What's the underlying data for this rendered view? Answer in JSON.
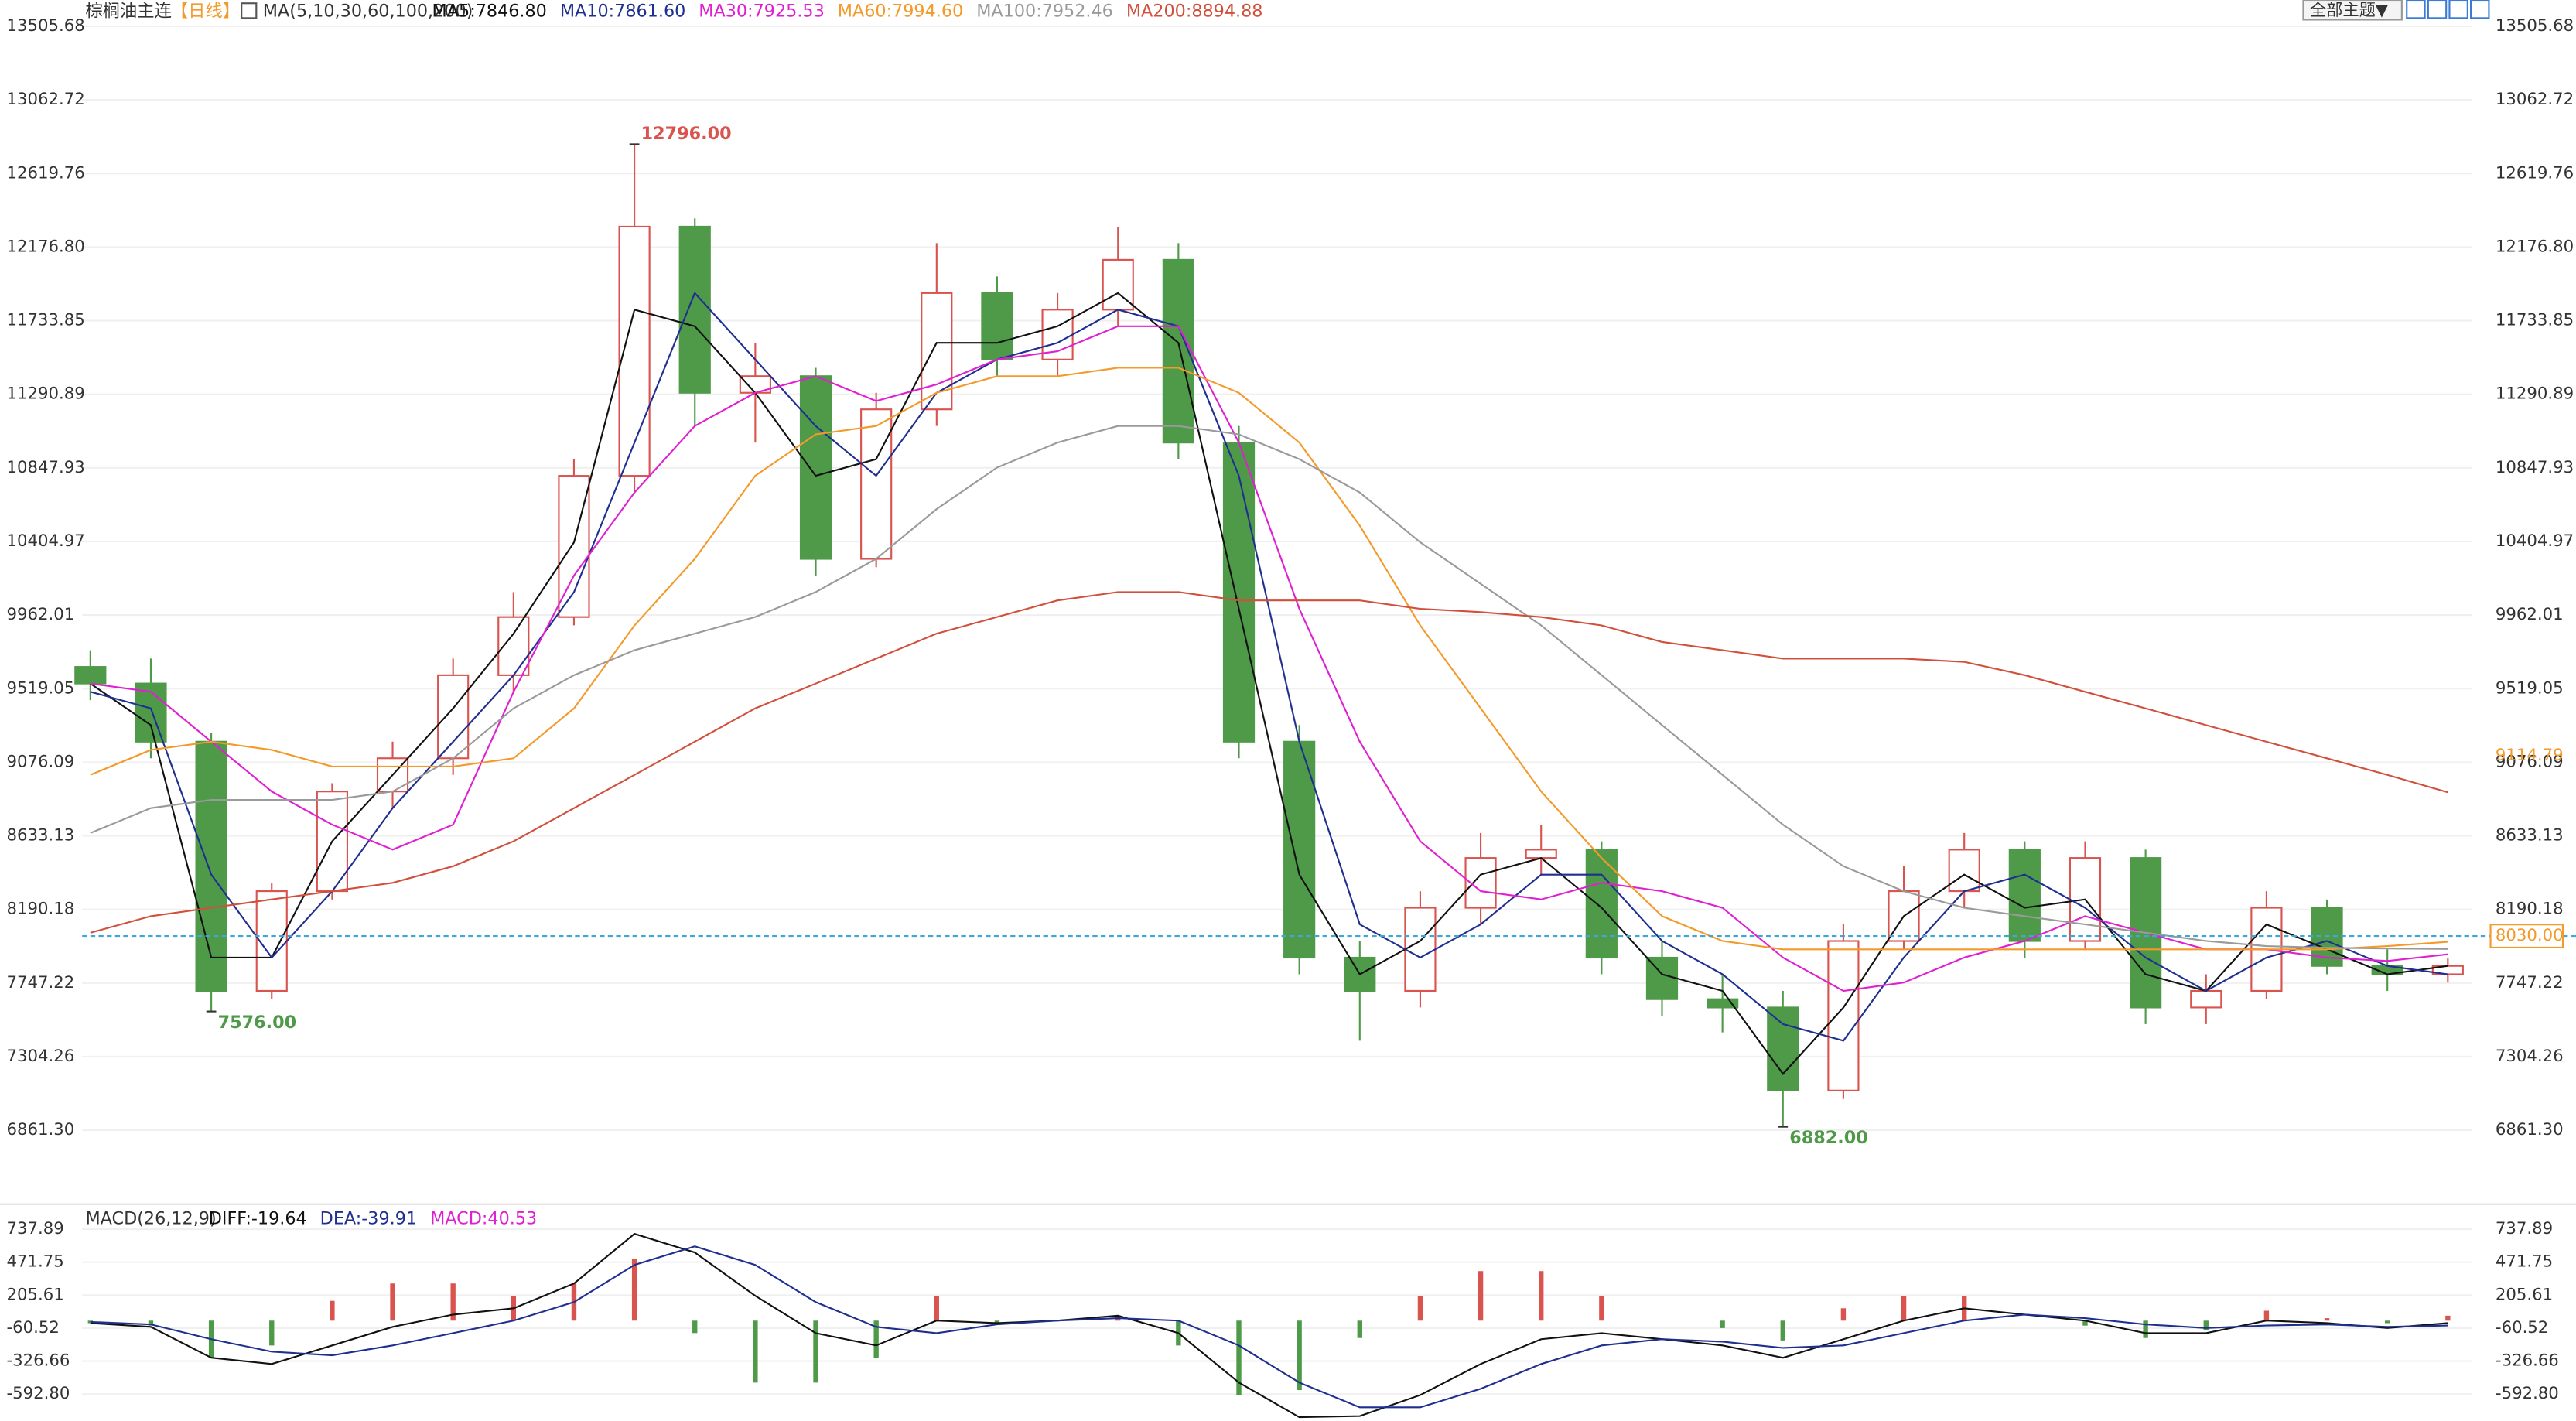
{
  "toolbar": {
    "theme_button": "全部主题▼"
  },
  "chart_data": [
    {
      "type": "candlestick",
      "title": "棕榈油主连",
      "period": "【日线】",
      "indicator": "MA(5,10,30,60,100,200)",
      "up_color": "#d9534f",
      "down_color": "#4f9a48",
      "open": [
        9650,
        9550,
        9200,
        7700,
        8300,
        8900,
        9100,
        9600,
        9950,
        10800,
        12300,
        11300,
        11400,
        10300,
        11200,
        11900,
        11500,
        11800,
        12100,
        11000,
        9200,
        7900,
        7700,
        8200,
        8500,
        8550,
        7900,
        7650,
        7600,
        7100,
        8000,
        8300,
        8550,
        8000,
        8500,
        7600,
        7700,
        8200,
        7850,
        7800
      ],
      "high": [
        9750,
        9700,
        9250,
        8350,
        8950,
        9200,
        9700,
        10100,
        10900,
        12796,
        12350,
        11600,
        11450,
        11300,
        12200,
        12000,
        11900,
        12300,
        12200,
        11100,
        9300,
        8000,
        8300,
        8650,
        8700,
        8600,
        8000,
        7800,
        7700,
        8100,
        8450,
        8650,
        8600,
        8600,
        8550,
        7800,
        8300,
        8250,
        7950,
        7900
      ],
      "low": [
        9450,
        9100,
        7576,
        7650,
        8250,
        8800,
        9000,
        9500,
        9900,
        10700,
        11100,
        11000,
        10200,
        10250,
        11100,
        11400,
        11400,
        11700,
        10900,
        9100,
        7800,
        7400,
        7600,
        8100,
        8400,
        7800,
        7550,
        7450,
        6882,
        7050,
        7950,
        8200,
        7900,
        7950,
        7500,
        7500,
        7650,
        7800,
        7700,
        7750
      ],
      "close": [
        9550,
        9200,
        7700,
        8300,
        8900,
        9100,
        9600,
        9950,
        10800,
        12300,
        11300,
        11400,
        10300,
        11200,
        11900,
        11500,
        11800,
        12100,
        11000,
        9200,
        7900,
        7700,
        8200,
        8500,
        8550,
        7900,
        7650,
        7600,
        7100,
        8000,
        8300,
        8550,
        8000,
        8500,
        7600,
        7700,
        8200,
        7850,
        7800,
        7850
      ],
      "series": [
        {
          "name": "MA5:7846.80",
          "color": "#111111",
          "values": [
            9550,
            9300,
            7900,
            7900,
            8600,
            9000,
            9400,
            9850,
            10400,
            11800,
            11700,
            11300,
            10800,
            10900,
            11600,
            11600,
            11700,
            11900,
            11600,
            10000,
            8400,
            7800,
            8000,
            8400,
            8500,
            8200,
            7800,
            7700,
            7200,
            7600,
            8150,
            8400,
            8200,
            8250,
            7800,
            7700,
            8100,
            7950,
            7800,
            7850
          ]
        },
        {
          "name": "MA10:7861.60",
          "color": "#1f2f8f",
          "values": [
            9500,
            9400,
            8400,
            7900,
            8300,
            8800,
            9200,
            9600,
            10100,
            11000,
            11900,
            11500,
            11100,
            10800,
            11300,
            11500,
            11600,
            11800,
            11700,
            10800,
            9200,
            8100,
            7900,
            8100,
            8400,
            8400,
            8000,
            7800,
            7500,
            7400,
            7900,
            8300,
            8400,
            8200,
            7900,
            7700,
            7900,
            8000,
            7850,
            7800
          ]
        },
        {
          "name": "MA30:7925.53",
          "color": "#e020d0",
          "values": [
            9550,
            9500,
            9200,
            8900,
            8700,
            8550,
            8700,
            9500,
            10200,
            10700,
            11100,
            11300,
            11400,
            11250,
            11350,
            11500,
            11550,
            11700,
            11700,
            11000,
            10000,
            9200,
            8600,
            8300,
            8250,
            8350,
            8300,
            8200,
            7900,
            7700,
            7750,
            7900,
            8000,
            8150,
            8050,
            7950,
            7950,
            7900,
            7880,
            7920
          ]
        },
        {
          "name": "MA60:7994.60",
          "color": "#f39a2b",
          "values": [
            9000,
            9150,
            9200,
            9150,
            9050,
            9050,
            9050,
            9100,
            9400,
            9900,
            10300,
            10800,
            11050,
            11100,
            11300,
            11400,
            11400,
            11450,
            11450,
            11300,
            11000,
            10500,
            9900,
            9400,
            8900,
            8500,
            8150,
            8000,
            7950,
            7950,
            7950,
            7950,
            7950,
            7950,
            7950,
            7950,
            7950,
            7950,
            7970,
            7995
          ]
        },
        {
          "name": "MA100:7952.46",
          "color": "#9a9a9a",
          "values": [
            8650,
            8800,
            8850,
            8850,
            8850,
            8900,
            9100,
            9400,
            9600,
            9750,
            9850,
            9950,
            10100,
            10300,
            10600,
            10850,
            11000,
            11100,
            11100,
            11050,
            10900,
            10700,
            10400,
            10150,
            9900,
            9600,
            9300,
            9000,
            8700,
            8450,
            8300,
            8200,
            8150,
            8100,
            8050,
            8000,
            7970,
            7960,
            7955,
            7952
          ]
        },
        {
          "name": "MA200:8894.88",
          "color": "#d0503c",
          "values": [
            8050,
            8150,
            8200,
            8250,
            8300,
            8350,
            8450,
            8600,
            8800,
            9000,
            9200,
            9400,
            9550,
            9700,
            9850,
            9950,
            10050,
            10100,
            10100,
            10050,
            10050,
            10050,
            10000,
            9980,
            9950,
            9900,
            9800,
            9750,
            9700,
            9700,
            9700,
            9680,
            9600,
            9500,
            9400,
            9300,
            9200,
            9100,
            9000,
            8895
          ]
        }
      ],
      "ylim": [
        6446,
        13505.68
      ],
      "yticks": [
        13505.68,
        13062.72,
        12619.76,
        {
          "value": 12176.8,
          "label": "12176.80"
        },
        11733.85,
        11290.89,
        10847.93,
        10404.97,
        9962.01,
        9519.05,
        9076.09,
        8633.13,
        8190.18,
        7747.22,
        7304.26,
        {
          "value": 6861.3,
          "label": "6861.30"
        }
      ],
      "annotations": [
        {
          "value": 12796,
          "label": "12796.00"
        },
        {
          "value": 7576,
          "label": "7576.00"
        },
        {
          "value": 6882,
          "label": "6882.00"
        }
      ],
      "price_marks": [
        {
          "value": 9114.79,
          "color": "#f39a2b"
        },
        {
          "value": 8030,
          "label": "8030.00",
          "color": "#f39a2b",
          "line_color": "#3fa7d6"
        }
      ]
    },
    {
      "type": "macd",
      "title": "MACD(26,12,9)",
      "pos_color": "#d9534f",
      "neg_color": "#4f9a48",
      "series": [
        {
          "name": "DIFF:-19.64",
          "color": "#111111",
          "values": [
            -20,
            -50,
            -300,
            -350,
            -200,
            -50,
            50,
            100,
            300,
            700,
            550,
            200,
            -100,
            -200,
            0,
            -20,
            0,
            40,
            -100,
            -500,
            -780,
            -770,
            -600,
            -350,
            -150,
            -100,
            -150,
            -200,
            -300,
            -150,
            0,
            100,
            50,
            0,
            -100,
            -100,
            0,
            -20,
            -60,
            -20
          ]
        },
        {
          "name": "DEA:-39.91",
          "color": "#1f2f8f",
          "values": [
            -10,
            -30,
            -150,
            -250,
            -280,
            -200,
            -100,
            0,
            150,
            450,
            600,
            450,
            150,
            -50,
            -100,
            -30,
            0,
            20,
            0,
            -200,
            -500,
            -700,
            -700,
            -550,
            -350,
            -200,
            -150,
            -170,
            -220,
            -200,
            -100,
            0,
            50,
            20,
            -30,
            -60,
            -40,
            -30,
            -50,
            -40
          ]
        },
        {
          "name": "MACD:40.53",
          "color": "#e020d0",
          "kind": "histogram",
          "values": [
            -20,
            -40,
            -300,
            -200,
            160,
            300,
            300,
            200,
            300,
            500,
            -100,
            -500,
            -500,
            -300,
            200,
            -20,
            0,
            40,
            -200,
            -600,
            -560,
            -140,
            200,
            400,
            400,
            200,
            0,
            -60,
            -160,
            100,
            200,
            200,
            0,
            -40,
            -140,
            -80,
            80,
            20,
            -20,
            40
          ]
        }
      ],
      "ylim": [
        -810,
        914
      ],
      "yticks": [
        737.89,
        471.75,
        205.61,
        -60.52,
        -326.66,
        {
          "value": -592.8,
          "label": "-592.80"
        }
      ]
    }
  ]
}
